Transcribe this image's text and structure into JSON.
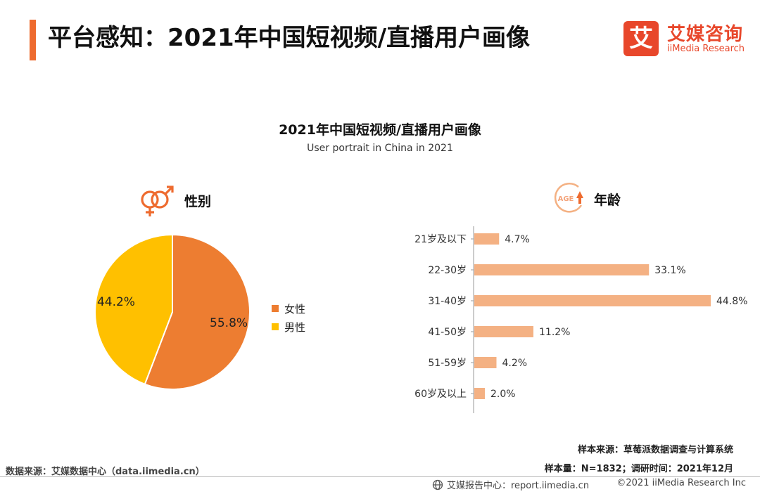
{
  "header": {
    "title": "平台感知：2021年中国短视频/直播用户画像",
    "logo_mark": "艾",
    "logo_cn": "艾媒咨询",
    "logo_en": "iiMedia Research"
  },
  "colors": {
    "accent": "#ee6b2f",
    "female": "#ed7d31",
    "male": "#ffc000",
    "age_bar": "#f4b183"
  },
  "chart_data": [
    {
      "type": "pie",
      "section_label": "性别",
      "labels": [
        "女性",
        "男性"
      ],
      "values": [
        55.8,
        44.2
      ],
      "value_labels": [
        "55.8%",
        "44.2%"
      ],
      "colors": [
        "#ed7d31",
        "#ffc000"
      ],
      "legend_position": "right"
    },
    {
      "type": "bar",
      "orientation": "horizontal",
      "section_label": "年龄",
      "categories": [
        "21岁及以下",
        "22-30岁",
        "31-40岁",
        "41-50岁",
        "51-59岁",
        "60岁及以上"
      ],
      "values": [
        4.7,
        33.1,
        44.8,
        11.2,
        4.2,
        2.0
      ],
      "value_labels": [
        "4.7%",
        "33.1%",
        "44.8%",
        "11.2%",
        "4.2%",
        "2.0%"
      ],
      "unit": "%",
      "color": "#f4b183"
    }
  ],
  "chart_titles": {
    "title": "2021年中国短视频/直播用户画像",
    "subtitle": "User portrait in China in 2021"
  },
  "icons": {
    "gender": "gender-symbol-icon",
    "age": "age-up-icon",
    "age_icon_text": "AGE",
    "footer": "globe-icon"
  },
  "notes": {
    "sample_source": "样本来源：草莓派数据调查与计算系统",
    "sample_size": "样本量：N=1832；调研时间：2021年12月"
  },
  "footer": {
    "data_source": "数据来源：艾媒数据中心（data.iimedia.cn）",
    "report_center": "艾媒报告中心：report.iimedia.cn",
    "copyright": "©2021  iiMedia Research  Inc"
  }
}
